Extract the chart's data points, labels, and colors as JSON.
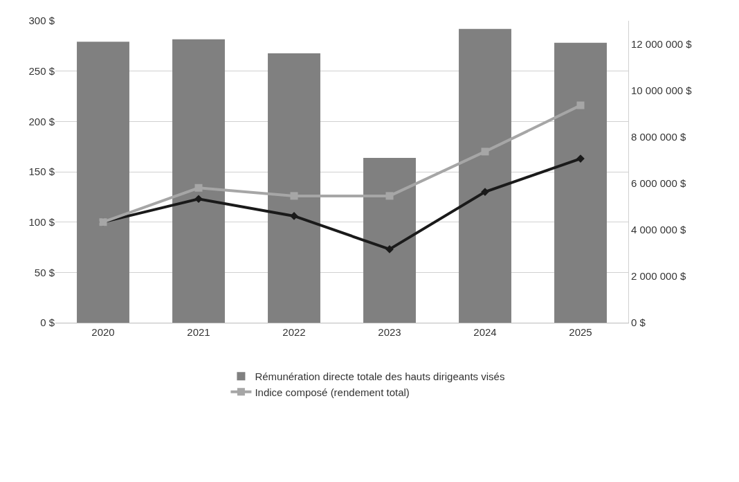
{
  "chart_data": {
    "type": "bar",
    "categories": [
      "2020",
      "2021",
      "2022",
      "2023",
      "2024",
      "2025"
    ],
    "series": [
      {
        "name": "Rémunération directe totale des hauts dirigeants visés",
        "axis": "y2",
        "color": "#808080",
        "values": [
          12100000,
          12200000,
          11600000,
          7100000,
          12650000,
          12050000
        ]
      },
      {
        "type": "line",
        "axis": "y",
        "color": "#1a1a1a",
        "marker": "diamond",
        "values": [
          100,
          123,
          106,
          73,
          130,
          163
        ]
      },
      {
        "name": "Indice composé (rendement total)",
        "type": "line",
        "axis": "y",
        "color": "#a6a6a6",
        "marker": "square",
        "values": [
          100,
          134,
          126,
          126,
          170,
          216
        ]
      }
    ],
    "ylim": [
      0,
      300
    ],
    "yticks": [
      {
        "value": 0,
        "label": "0 $"
      },
      {
        "value": 50,
        "label": "50 $"
      },
      {
        "value": 100,
        "label": "100 $"
      },
      {
        "value": 150,
        "label": "150 $"
      },
      {
        "value": 200,
        "label": "200 $"
      },
      {
        "value": 250,
        "label": "250 $"
      },
      {
        "value": 300,
        "label": "300 $"
      }
    ],
    "y2lim": [
      0,
      13000000
    ],
    "y2ticks": [
      {
        "value": 0,
        "label": "0 $"
      },
      {
        "value": 2000000,
        "label": "2 000 000 $"
      },
      {
        "value": 4000000,
        "label": "4 000 000 $"
      },
      {
        "value": 6000000,
        "label": "6 000 000 $"
      },
      {
        "value": 8000000,
        "label": "8 000 000 $"
      },
      {
        "value": 10000000,
        "label": "10 000 000 $"
      },
      {
        "value": 12000000,
        "label": "12 000 000 $"
      }
    ],
    "grid": "y",
    "legend": "bottom",
    "line_style": "solid"
  }
}
